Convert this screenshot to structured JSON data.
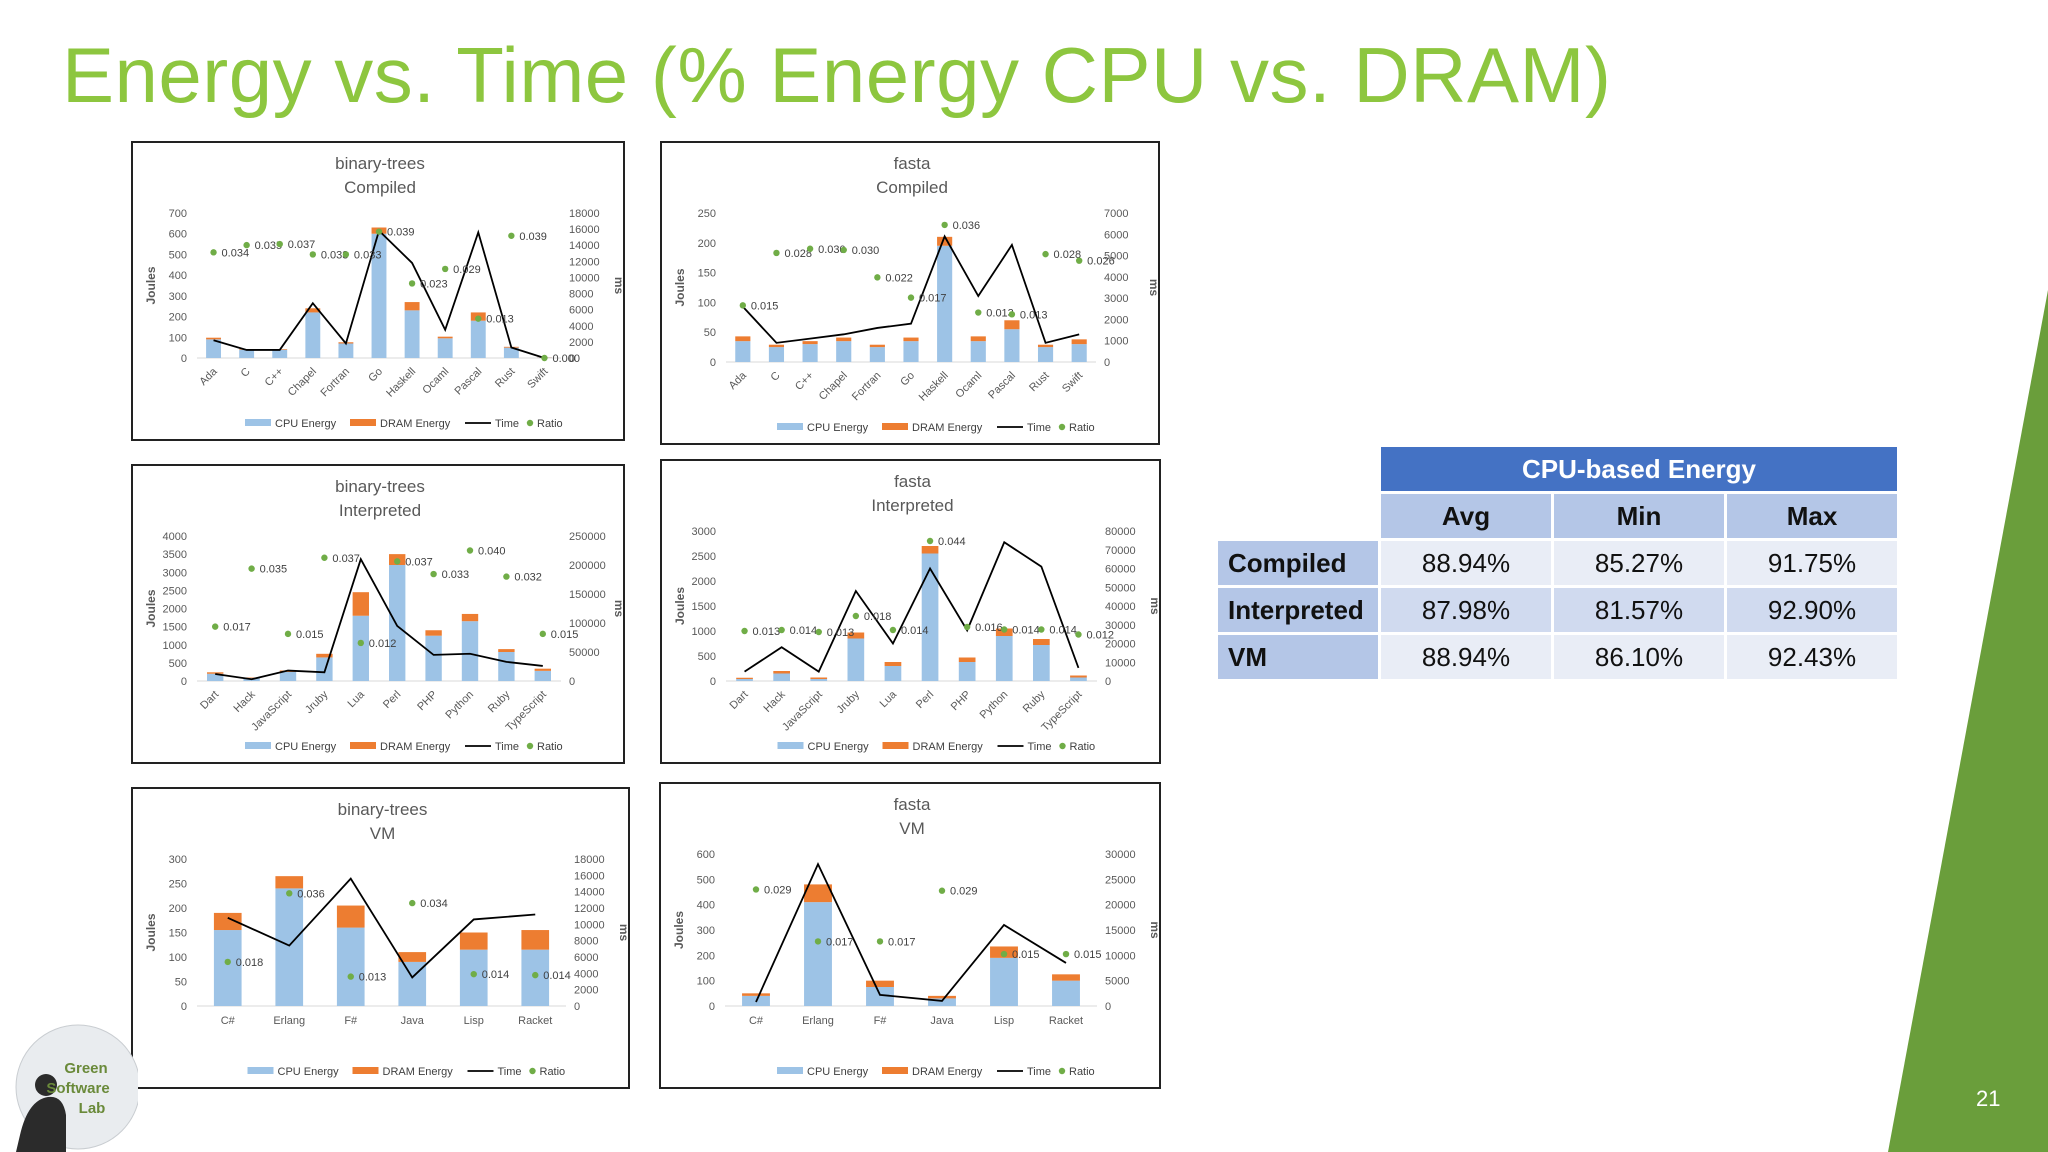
{
  "slide": {
    "title": "Energy vs. Time (% Energy CPU vs. DRAM)",
    "page_number": "21",
    "accent_color": "#8DC63F",
    "wedge_color": "#6A9E3B"
  },
  "logo": {
    "lines": [
      "Green",
      "Software",
      "Lab"
    ]
  },
  "legend": {
    "cpu": "CPU Energy",
    "dram": "DRAM Energy",
    "time": "Time",
    "ratio": "Ratio"
  },
  "colors": {
    "cpu": "#9DC3E6",
    "dram": "#ED7D31",
    "time": "#000000",
    "ratio": "#70AD47"
  },
  "chart_data": [
    {
      "id": "bt-compiled",
      "type": "bar",
      "title": [
        "binary-trees",
        "Compiled"
      ],
      "ylabel": "Joules",
      "y2label": "ms",
      "ylim": [
        0,
        700
      ],
      "y_ticks": [
        "0",
        "100",
        "200",
        "300",
        "400",
        "500",
        "600",
        "700"
      ],
      "y2lim": [
        0,
        18000
      ],
      "y2_ticks": [
        "0",
        "2000",
        "4000",
        "6000",
        "8000",
        "10000",
        "12000",
        "14000",
        "16000",
        "18000"
      ],
      "categories": [
        "Ada",
        "C",
        "C++",
        "Chapel",
        "Fortran",
        "Go",
        "Haskell",
        "Ocaml",
        "Pascal",
        "Rust",
        "Swift"
      ],
      "cpu": [
        90,
        40,
        40,
        220,
        70,
        600,
        230,
        95,
        180,
        50,
        2
      ],
      "dram": [
        8,
        3,
        3,
        20,
        6,
        30,
        40,
        8,
        40,
        4,
        1
      ],
      "time": [
        2200,
        1000,
        1000,
        6800,
        1800,
        15800,
        11800,
        3500,
        15600,
        1300,
        0
      ],
      "ratio": [
        0.034,
        0.035,
        0.037,
        0.033,
        0.033,
        0.039,
        0.023,
        0.029,
        0.013,
        0.039,
        0.0
      ],
      "ratio_labels": [
        "0.034",
        "0.035",
        "0.037",
        "0.033",
        "0.033",
        "0.039",
        "0.023",
        "0.029",
        "0.013",
        "0.039",
        "0.000"
      ],
      "ratio_pos": [
        510,
        545,
        550,
        500,
        500,
        610,
        360,
        430,
        190,
        590,
        0
      ]
    },
    {
      "id": "fasta-compiled",
      "type": "bar",
      "title": [
        "fasta",
        "Compiled"
      ],
      "ylabel": "Joules",
      "y2label": "ms",
      "ylim": [
        0,
        250
      ],
      "y_ticks": [
        "0",
        "50",
        "100",
        "150",
        "200",
        "250"
      ],
      "y2lim": [
        0,
        7000
      ],
      "y2_ticks": [
        "0",
        "1000",
        "2000",
        "3000",
        "4000",
        "5000",
        "6000",
        "7000"
      ],
      "categories": [
        "Ada",
        "C",
        "C++",
        "Chapel",
        "Fortran",
        "Go",
        "Haskell",
        "Ocaml",
        "Pascal",
        "Rust",
        "Swift"
      ],
      "cpu": [
        35,
        25,
        30,
        35,
        25,
        35,
        195,
        35,
        55,
        25,
        30
      ],
      "dram": [
        8,
        4,
        5,
        6,
        4,
        6,
        15,
        8,
        15,
        4,
        8
      ],
      "time": [
        2600,
        900,
        1100,
        1300,
        1600,
        1800,
        5900,
        3100,
        5500,
        900,
        1300
      ],
      "ratio": [
        0.015,
        0.028,
        0.03,
        0.03,
        0.022,
        0.017,
        0.036,
        0.013,
        0.013,
        0.028,
        0.026
      ],
      "ratio_labels": [
        "0.015",
        "0.028",
        "0.030",
        "0.030",
        "0.022",
        "0.017",
        "0.036",
        "0.013",
        "0.013",
        "0.028",
        "0.026"
      ],
      "ratio_pos": [
        95,
        183,
        190,
        188,
        142,
        108,
        230,
        83,
        80,
        181,
        170
      ]
    },
    {
      "id": "bt-interpreted",
      "type": "bar",
      "title": [
        "binary-trees",
        "Interpreted"
      ],
      "ylabel": "Joules",
      "y2label": "ms",
      "ylim": [
        0,
        4000
      ],
      "y_ticks": [
        "0",
        "500",
        "1000",
        "1500",
        "2000",
        "2500",
        "3000",
        "3500",
        "4000"
      ],
      "y2lim": [
        0,
        250000
      ],
      "y2_ticks": [
        "0",
        "50000",
        "100000",
        "150000",
        "200000",
        "250000"
      ],
      "categories": [
        "Dart",
        "Hack",
        "JavaScript",
        "Jruby",
        "Lua",
        "Perl",
        "PHP",
        "Python",
        "Ruby",
        "TypeScript"
      ],
      "cpu": [
        200,
        80,
        250,
        650,
        1800,
        3200,
        1250,
        1650,
        800,
        280
      ],
      "dram": [
        40,
        15,
        40,
        100,
        650,
        300,
        150,
        200,
        80,
        60
      ],
      "time": [
        12000,
        3000,
        18000,
        15000,
        210000,
        95000,
        45000,
        47000,
        33000,
        26000
      ],
      "ratio": [
        0.017,
        0.035,
        0.015,
        0.037,
        0.012,
        0.037,
        0.033,
        0.04,
        0.032,
        0.015
      ],
      "ratio_labels": [
        "0.017",
        "0.035",
        "0.015",
        "0.037",
        "0.012",
        "0.037",
        "0.033",
        "0.040",
        "0.032",
        "0.015"
      ],
      "ratio_pos": [
        1500,
        3100,
        1300,
        3400,
        1050,
        3300,
        2950,
        3600,
        2880,
        1300
      ]
    },
    {
      "id": "fasta-interpreted",
      "type": "bar",
      "title": [
        "fasta",
        "Interpreted"
      ],
      "ylabel": "Joules",
      "y2label": "ms",
      "ylim": [
        0,
        3000
      ],
      "y_ticks": [
        "0",
        "500",
        "1000",
        "1500",
        "2000",
        "2500",
        "3000"
      ],
      "y2lim": [
        0,
        80000
      ],
      "y2_ticks": [
        "0",
        "10000",
        "20000",
        "30000",
        "40000",
        "50000",
        "60000",
        "70000",
        "80000"
      ],
      "categories": [
        "Dart",
        "Hack",
        "JavaScript",
        "Jruby",
        "Lua",
        "Perl",
        "PHP",
        "Python",
        "Ruby",
        "TypeScript"
      ],
      "cpu": [
        40,
        150,
        40,
        850,
        300,
        2550,
        380,
        900,
        720,
        70
      ],
      "dram": [
        25,
        50,
        30,
        120,
        80,
        150,
        90,
        150,
        120,
        40
      ],
      "time": [
        5000,
        18000,
        5000,
        48000,
        20000,
        60000,
        27000,
        74000,
        61000,
        7000
      ],
      "ratio": [
        0.013,
        0.014,
        0.013,
        0.018,
        0.014,
        0.044,
        0.016,
        0.014,
        0.014,
        0.012
      ],
      "ratio_labels": [
        "0.013",
        "0.014",
        "0.013",
        "0.018",
        "0.014",
        "0.044",
        "0.016",
        "0.014",
        "0.014",
        "0.012"
      ],
      "ratio_pos": [
        1000,
        1020,
        980,
        1300,
        1020,
        2800,
        1080,
        1030,
        1030,
        930
      ]
    },
    {
      "id": "bt-vm",
      "type": "bar",
      "title": [
        "binary-trees",
        "VM"
      ],
      "ylabel": "Joules",
      "y2label": "ms",
      "ylim": [
        0,
        300
      ],
      "y_ticks": [
        "0",
        "50",
        "100",
        "150",
        "200",
        "250",
        "300"
      ],
      "y2lim": [
        0,
        18000
      ],
      "y2_ticks": [
        "0",
        "2000",
        "4000",
        "6000",
        "8000",
        "10000",
        "12000",
        "14000",
        "16000",
        "18000"
      ],
      "categories": [
        "C#",
        "Erlang",
        "F#",
        "Java",
        "Lisp",
        "Racket"
      ],
      "cpu": [
        155,
        240,
        160,
        90,
        115,
        115
      ],
      "dram": [
        35,
        25,
        45,
        20,
        35,
        40
      ],
      "time": [
        10800,
        7400,
        15600,
        3500,
        10600,
        11200
      ],
      "ratio": [
        0.018,
        0.036,
        0.013,
        0.034,
        0.014,
        0.014
      ],
      "ratio_labels": [
        "0.018",
        "0.036",
        "0.013",
        "0.034",
        "0.014",
        "0.014"
      ],
      "ratio_pos": [
        90,
        230,
        60,
        210,
        65,
        63
      ]
    },
    {
      "id": "fasta-vm",
      "type": "bar",
      "title": [
        "fasta",
        "VM"
      ],
      "ylabel": "Joules",
      "y2label": "ms",
      "ylim": [
        0,
        600
      ],
      "y_ticks": [
        "0",
        "100",
        "200",
        "300",
        "400",
        "500",
        "600"
      ],
      "y2lim": [
        0,
        30000
      ],
      "y2_ticks": [
        "0",
        "5000",
        "10000",
        "15000",
        "20000",
        "25000",
        "30000"
      ],
      "categories": [
        "C#",
        "Erlang",
        "F#",
        "Java",
        "Lisp",
        "Racket"
      ],
      "cpu": [
        40,
        410,
        75,
        30,
        190,
        100
      ],
      "dram": [
        10,
        70,
        25,
        10,
        45,
        25
      ],
      "time": [
        800,
        28000,
        2200,
        1000,
        16000,
        8500
      ],
      "ratio": [
        0.029,
        0.017,
        0.017,
        0.029,
        0.015,
        0.015
      ],
      "ratio_labels": [
        "0.029",
        "0.017",
        "0.017",
        "0.029",
        "0.015",
        "0.015"
      ],
      "ratio_pos": [
        460,
        255,
        255,
        455,
        205,
        205
      ]
    }
  ],
  "energy_table": {
    "header": "CPU-based Energy",
    "columns": [
      "Avg",
      "Min",
      "Max"
    ],
    "rows": [
      {
        "label": "Compiled",
        "avg": "88.94%",
        "min": "85.27%",
        "max": "91.75%"
      },
      {
        "label": "Interpreted",
        "avg": "87.98%",
        "min": "81.57%",
        "max": "92.90%"
      },
      {
        "label": "VM",
        "avg": "88.94%",
        "min": "86.10%",
        "max": "92.43%"
      }
    ]
  }
}
